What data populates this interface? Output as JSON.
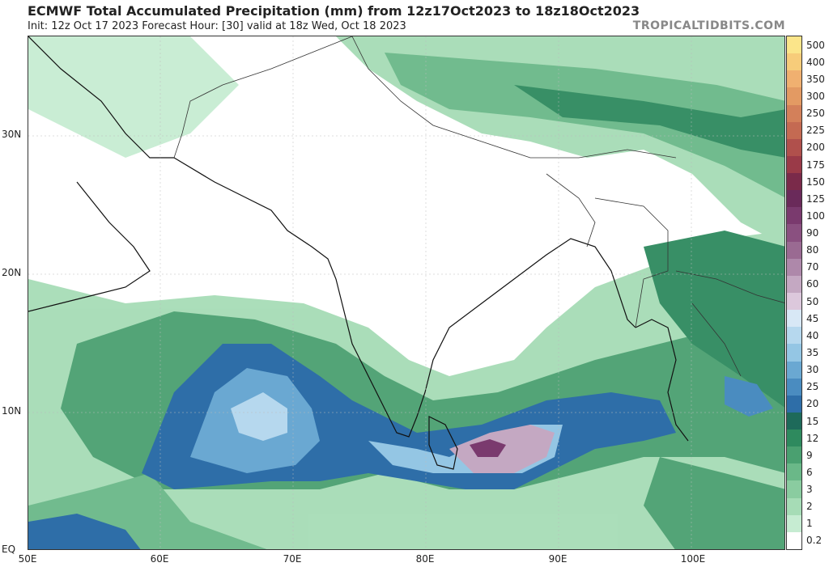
{
  "header": {
    "title": "ECMWF Total Accumulated Precipitation (mm) from 12z17Oct2023 to 18z18Oct2023",
    "subtitle": "Init: 12z Oct 17 2023   Forecast Hour: [30]   valid at 18z Wed, Oct 18 2023",
    "brand": "TROPICALTIDBITS.COM"
  },
  "axes": {
    "lat_labels": [
      "30N",
      "20N",
      "10N",
      "EQ"
    ],
    "lon_labels": [
      "50E",
      "60E",
      "70E",
      "80E",
      "90E",
      "100E"
    ]
  },
  "colorbar": {
    "levels": [
      "500",
      "400",
      "350",
      "300",
      "250",
      "225",
      "200",
      "175",
      "150",
      "125",
      "100",
      "90",
      "80",
      "70",
      "60",
      "50",
      "45",
      "40",
      "35",
      "30",
      "25",
      "20",
      "15",
      "12",
      "9",
      "6",
      "3",
      "2",
      "1",
      "0.2"
    ],
    "colors": [
      "#fbe58a",
      "#f7cc7a",
      "#f0b070",
      "#e39a63",
      "#d3805a",
      "#c46a52",
      "#b0504c",
      "#9a3a48",
      "#7a2a4a",
      "#6a2a5a",
      "#7a3a6e",
      "#8a5080",
      "#9a6a92",
      "#ae88aa",
      "#c4a8c2",
      "#dcc8dc",
      "#d8e8f6",
      "#b6d8ee",
      "#94c6e4",
      "#6aa8d2",
      "#4a8cc0",
      "#2e6ea8",
      "#1e6a5a",
      "#2e8a5e",
      "#4aa070",
      "#6ab888",
      "#8acca0",
      "#a6dcb6",
      "#c6ecd2",
      "#ffffff"
    ]
  }
}
